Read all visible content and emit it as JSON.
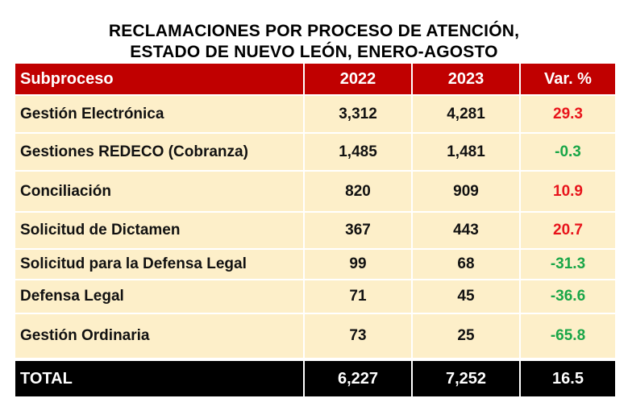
{
  "title": [
    "RECLAMACIONES POR PROCESO DE ATENCIÓN,",
    "ESTADO DE NUEVO LEÓN, ENERO-AGOSTO"
  ],
  "colors": {
    "header": "#c00000",
    "row": "#fdefc9",
    "total": "#000000",
    "positive": "#e8141b",
    "negative": "#1aa648"
  },
  "chart_data": {
    "type": "table",
    "title": "RECLAMACIONES POR PROCESO DE ATENCIÓN, ESTADO DE NUEVO LEÓN, ENERO-AGOSTO",
    "columns": [
      "Subproceso",
      "2022",
      "2023",
      "Var. %"
    ],
    "rows": [
      [
        "Gestión Electrónica",
        "3,312",
        "4,281",
        "29.3"
      ],
      [
        "Gestiones REDECO (Cobranza)",
        "1,485",
        "1,481",
        "-0.3"
      ],
      [
        "Conciliación",
        "820",
        "909",
        "10.9"
      ],
      [
        "Solicitud de Dictamen",
        "367",
        "443",
        "20.7"
      ],
      [
        "Solicitud para la Defensa Legal",
        "99",
        "68",
        "-31.3"
      ],
      [
        "Defensa Legal",
        "71",
        "45",
        "-36.6"
      ],
      [
        "Gestión Ordinaria",
        "73",
        "25",
        "-65.8"
      ]
    ],
    "total": [
      "TOTAL",
      "6,227",
      "7,252",
      "16.5"
    ]
  }
}
